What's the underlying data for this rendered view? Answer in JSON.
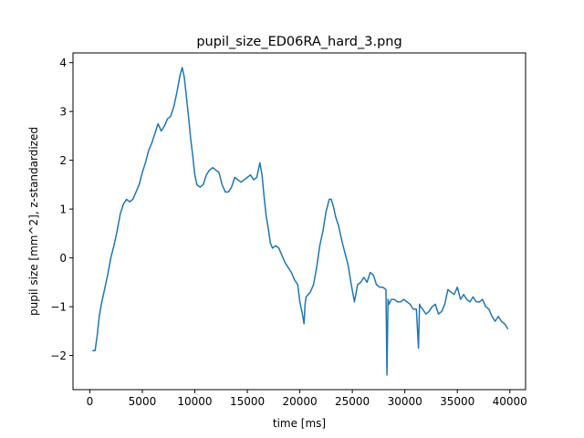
{
  "chart_data": {
    "type": "line",
    "title": "pupil_size_ED06RA_hard_3.png",
    "xlabel": "time [ms]",
    "ylabel": "pupil size [mm^2], z-standardized",
    "xlim": [
      -1600,
      41500
    ],
    "ylim": [
      -2.7,
      4.2
    ],
    "xticks": [
      0,
      5000,
      10000,
      15000,
      20000,
      25000,
      30000,
      35000,
      40000
    ],
    "yticks": [
      -2,
      -1,
      0,
      1,
      2,
      3,
      4
    ],
    "ytick_labels": [
      "−2",
      "−1",
      "0",
      "1",
      "2",
      "3",
      "4"
    ],
    "grid": false,
    "legend": "none",
    "series": [
      {
        "color": "#1f77b4",
        "x": [
          300,
          500,
          700,
          900,
          1100,
          1400,
          1700,
          2000,
          2300,
          2600,
          2900,
          3200,
          3500,
          3800,
          4100,
          4400,
          4700,
          5000,
          5300,
          5600,
          5900,
          6200,
          6500,
          6800,
          7100,
          7400,
          7700,
          8000,
          8300,
          8600,
          8800,
          9000,
          9200,
          9400,
          9600,
          9800,
          10000,
          10200,
          10500,
          10800,
          11100,
          11400,
          11700,
          12000,
          12300,
          12600,
          12900,
          13200,
          13500,
          13800,
          14100,
          14400,
          14700,
          15000,
          15300,
          15600,
          15900,
          16200,
          16400,
          16600,
          16800,
          17000,
          17200,
          17400,
          17700,
          18000,
          18300,
          18600,
          18900,
          19200,
          19500,
          19800,
          20000,
          20200,
          20400,
          20500,
          20600,
          20800,
          21000,
          21300,
          21600,
          21900,
          22200,
          22500,
          22800,
          23000,
          23200,
          23400,
          23700,
          24000,
          24300,
          24600,
          24900,
          25200,
          25500,
          25800,
          26100,
          26400,
          26700,
          27000,
          27300,
          27600,
          27900,
          28200,
          28300,
          28400,
          28500,
          28700,
          29000,
          29300,
          29600,
          29900,
          30200,
          30500,
          30800,
          31100,
          31300,
          31400,
          31500,
          31700,
          32000,
          32300,
          32600,
          32900,
          33200,
          33500,
          33800,
          34100,
          34400,
          34700,
          35000,
          35300,
          35600,
          35900,
          36200,
          36500,
          36800,
          37100,
          37400,
          37700,
          38000,
          38300,
          38600,
          38900,
          39200,
          39500,
          39800
        ],
        "y": [
          -1.9,
          -1.9,
          -1.6,
          -1.2,
          -0.95,
          -0.65,
          -0.35,
          0.0,
          0.25,
          0.55,
          0.9,
          1.1,
          1.2,
          1.15,
          1.2,
          1.35,
          1.5,
          1.75,
          1.95,
          2.2,
          2.35,
          2.55,
          2.75,
          2.6,
          2.7,
          2.85,
          2.9,
          3.1,
          3.4,
          3.75,
          3.9,
          3.7,
          3.3,
          2.9,
          2.45,
          2.1,
          1.7,
          1.5,
          1.45,
          1.5,
          1.7,
          1.8,
          1.85,
          1.8,
          1.75,
          1.5,
          1.35,
          1.35,
          1.45,
          1.65,
          1.6,
          1.55,
          1.6,
          1.65,
          1.7,
          1.6,
          1.65,
          1.95,
          1.7,
          1.25,
          0.85,
          0.6,
          0.3,
          0.2,
          0.25,
          0.2,
          0.05,
          -0.1,
          -0.2,
          -0.3,
          -0.45,
          -0.55,
          -0.9,
          -1.1,
          -1.35,
          -0.95,
          -0.8,
          -0.75,
          -0.7,
          -0.55,
          -0.2,
          0.25,
          0.55,
          0.95,
          1.2,
          1.2,
          1.05,
          0.85,
          0.65,
          0.35,
          0.1,
          -0.15,
          -0.55,
          -0.9,
          -0.55,
          -0.5,
          -0.4,
          -0.5,
          -0.3,
          -0.35,
          -0.55,
          -0.6,
          -0.6,
          -0.65,
          -2.4,
          -0.85,
          -0.95,
          -0.85,
          -0.85,
          -0.9,
          -0.9,
          -0.85,
          -0.9,
          -0.95,
          -1.05,
          -1.05,
          -1.85,
          -0.95,
          -1.0,
          -1.05,
          -1.15,
          -1.1,
          -1.0,
          -0.95,
          -1.15,
          -1.1,
          -0.95,
          -0.65,
          -0.7,
          -0.75,
          -0.6,
          -0.85,
          -0.75,
          -0.85,
          -0.9,
          -0.8,
          -0.9,
          -0.9,
          -0.85,
          -1.0,
          -1.05,
          -1.2,
          -1.3,
          -1.2,
          -1.3,
          -1.35,
          -1.45
        ]
      }
    ]
  }
}
